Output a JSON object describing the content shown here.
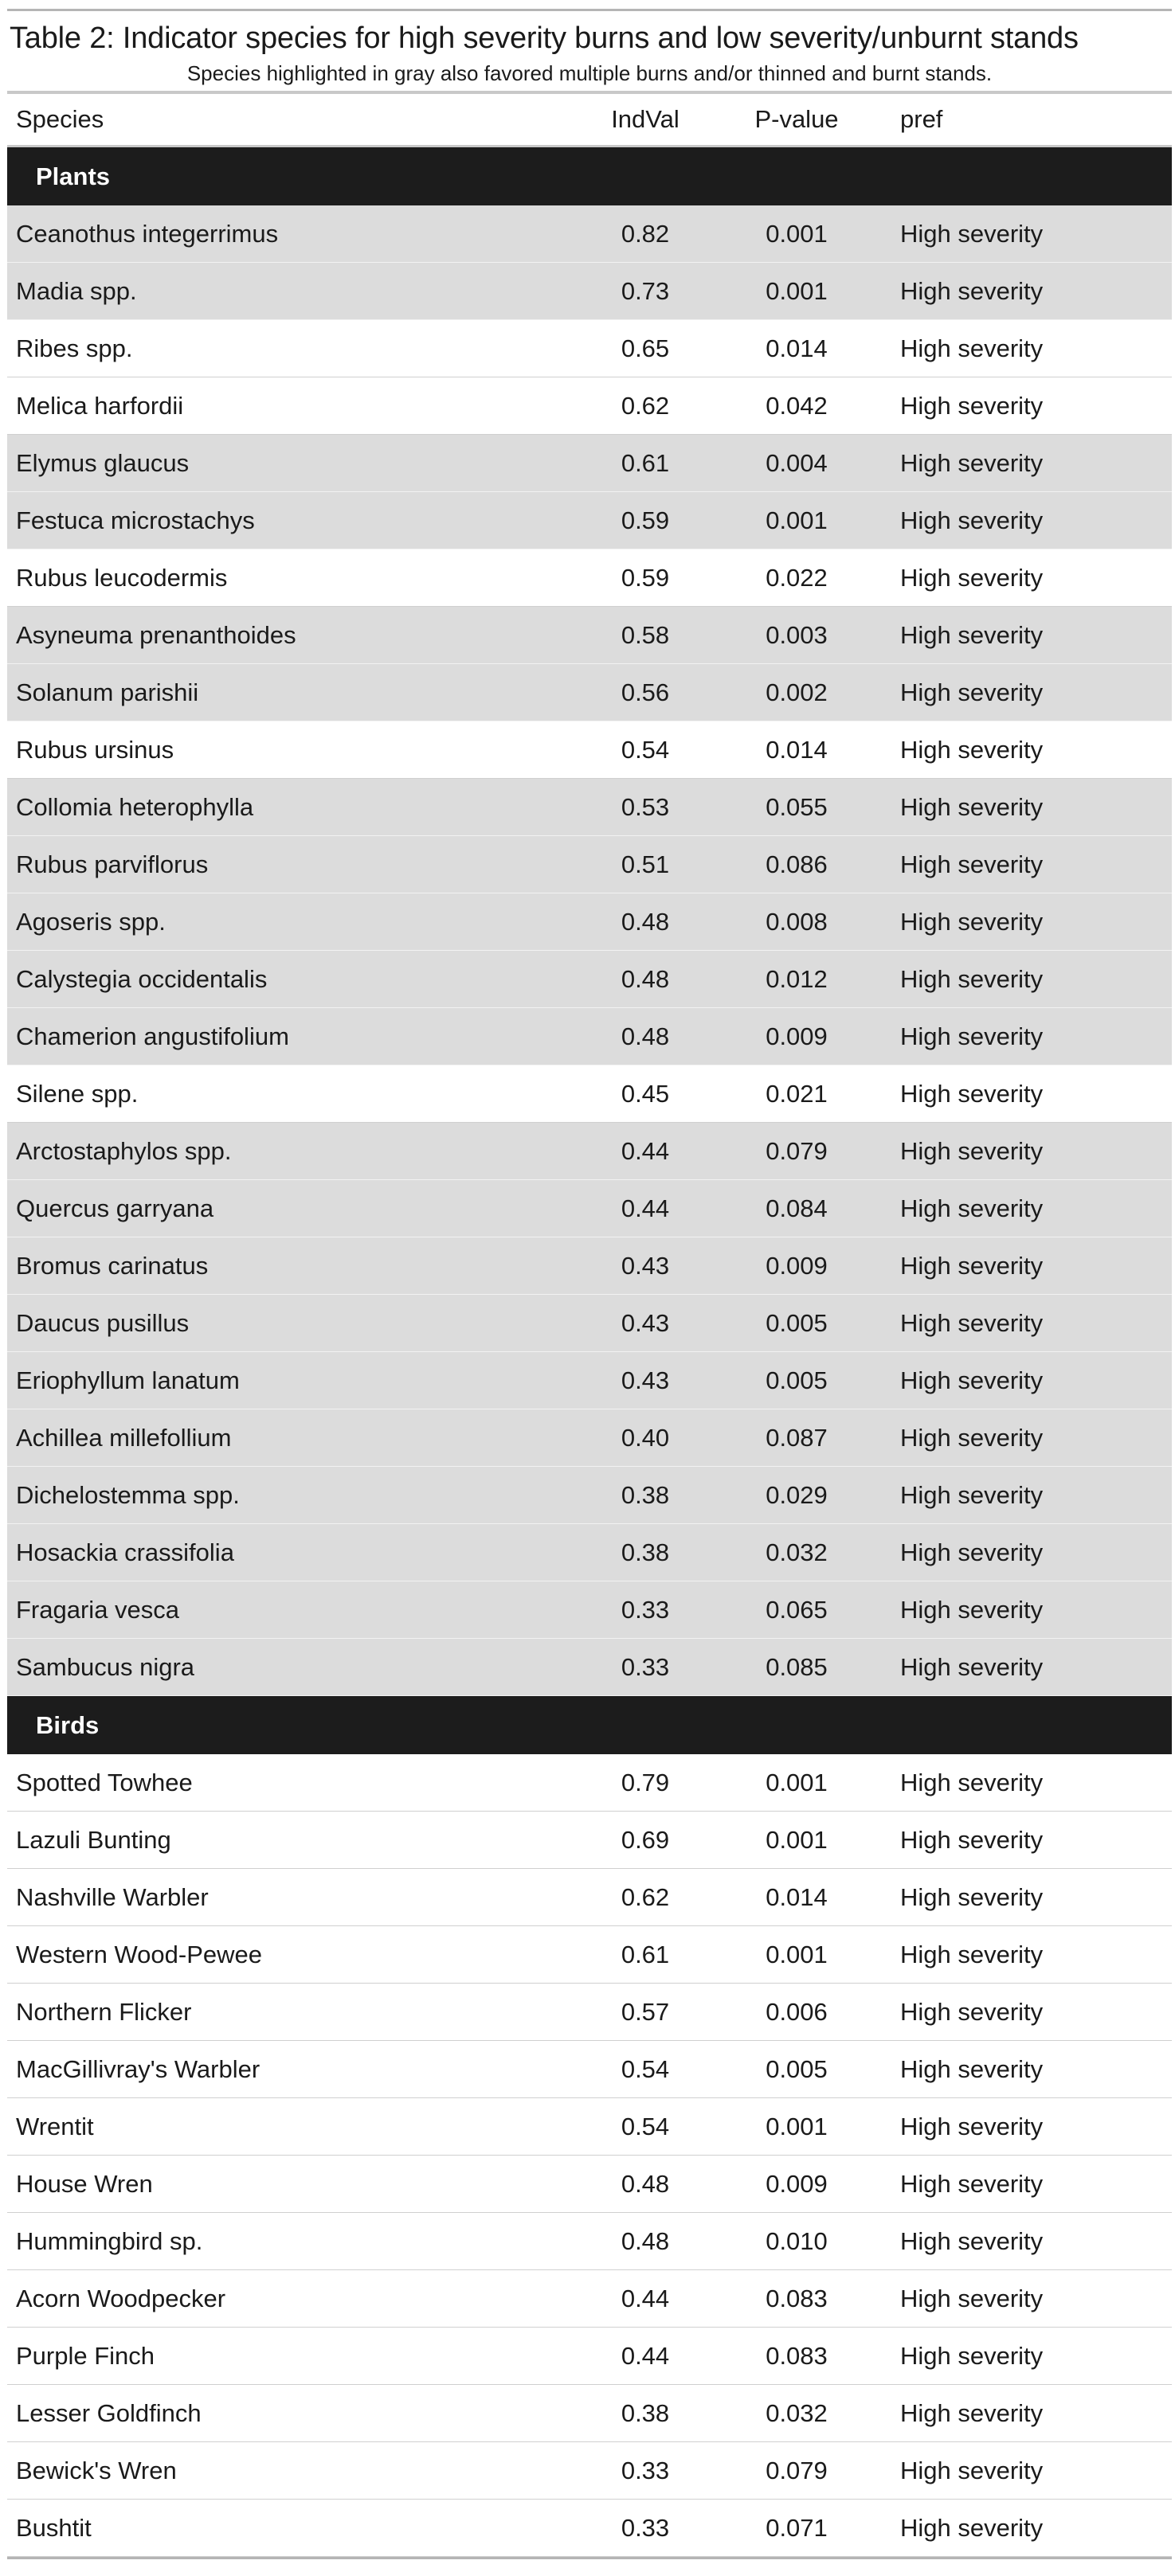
{
  "title": "Table 2: Indicator species for high severity burns and low severity/unburnt stands",
  "subtitle": "Species highlighted in gray also favored multiple burns and/or thinned and burnt stands.",
  "columns": {
    "species": "Species",
    "indval": "IndVal",
    "pvalue": "P-value",
    "pref": "pref"
  },
  "colors": {
    "highlight": "#dcdcdc",
    "group_header": "#1c1c1c"
  },
  "groups": [
    {
      "label": "Plants",
      "rows": [
        {
          "species": "Ceanothus integerrimus",
          "indval": "0.82",
          "pvalue": "0.001",
          "pref": "High severity",
          "highlighted": true
        },
        {
          "species": "Madia spp.",
          "indval": "0.73",
          "pvalue": "0.001",
          "pref": "High severity",
          "highlighted": true
        },
        {
          "species": "Ribes spp.",
          "indval": "0.65",
          "pvalue": "0.014",
          "pref": "High severity",
          "highlighted": false
        },
        {
          "species": "Melica harfordii",
          "indval": "0.62",
          "pvalue": "0.042",
          "pref": "High severity",
          "highlighted": false
        },
        {
          "species": "Elymus glaucus",
          "indval": "0.61",
          "pvalue": "0.004",
          "pref": "High severity",
          "highlighted": true
        },
        {
          "species": "Festuca microstachys",
          "indval": "0.59",
          "pvalue": "0.001",
          "pref": "High severity",
          "highlighted": true
        },
        {
          "species": "Rubus leucodermis",
          "indval": "0.59",
          "pvalue": "0.022",
          "pref": "High severity",
          "highlighted": false
        },
        {
          "species": "Asyneuma prenanthoides",
          "indval": "0.58",
          "pvalue": "0.003",
          "pref": "High severity",
          "highlighted": true
        },
        {
          "species": "Solanum parishii",
          "indval": "0.56",
          "pvalue": "0.002",
          "pref": "High severity",
          "highlighted": true
        },
        {
          "species": "Rubus ursinus",
          "indval": "0.54",
          "pvalue": "0.014",
          "pref": "High severity",
          "highlighted": false
        },
        {
          "species": "Collomia heterophylla",
          "indval": "0.53",
          "pvalue": "0.055",
          "pref": "High severity",
          "highlighted": true
        },
        {
          "species": "Rubus parviflorus",
          "indval": "0.51",
          "pvalue": "0.086",
          "pref": "High severity",
          "highlighted": true
        },
        {
          "species": "Agoseris spp.",
          "indval": "0.48",
          "pvalue": "0.008",
          "pref": "High severity",
          "highlighted": true
        },
        {
          "species": "Calystegia occidentalis",
          "indval": "0.48",
          "pvalue": "0.012",
          "pref": "High severity",
          "highlighted": true
        },
        {
          "species": "Chamerion angustifolium",
          "indval": "0.48",
          "pvalue": "0.009",
          "pref": "High severity",
          "highlighted": true
        },
        {
          "species": "Silene spp.",
          "indval": "0.45",
          "pvalue": "0.021",
          "pref": "High severity",
          "highlighted": false
        },
        {
          "species": "Arctostaphylos spp.",
          "indval": "0.44",
          "pvalue": "0.079",
          "pref": "High severity",
          "highlighted": true
        },
        {
          "species": "Quercus garryana",
          "indval": "0.44",
          "pvalue": "0.084",
          "pref": "High severity",
          "highlighted": true
        },
        {
          "species": "Bromus carinatus",
          "indval": "0.43",
          "pvalue": "0.009",
          "pref": "High severity",
          "highlighted": true
        },
        {
          "species": "Daucus pusillus",
          "indval": "0.43",
          "pvalue": "0.005",
          "pref": "High severity",
          "highlighted": true
        },
        {
          "species": "Eriophyllum lanatum",
          "indval": "0.43",
          "pvalue": "0.005",
          "pref": "High severity",
          "highlighted": true
        },
        {
          "species": "Achillea millefollium",
          "indval": "0.40",
          "pvalue": "0.087",
          "pref": "High severity",
          "highlighted": true
        },
        {
          "species": "Dichelostemma spp.",
          "indval": "0.38",
          "pvalue": "0.029",
          "pref": "High severity",
          "highlighted": true
        },
        {
          "species": "Hosackia crassifolia",
          "indval": "0.38",
          "pvalue": "0.032",
          "pref": "High severity",
          "highlighted": true
        },
        {
          "species": "Fragaria vesca",
          "indval": "0.33",
          "pvalue": "0.065",
          "pref": "High severity",
          "highlighted": true
        },
        {
          "species": "Sambucus nigra",
          "indval": "0.33",
          "pvalue": "0.085",
          "pref": "High severity",
          "highlighted": true
        }
      ]
    },
    {
      "label": "Birds",
      "rows": [
        {
          "species": "Spotted Towhee",
          "indval": "0.79",
          "pvalue": "0.001",
          "pref": "High severity",
          "highlighted": false
        },
        {
          "species": "Lazuli Bunting",
          "indval": "0.69",
          "pvalue": "0.001",
          "pref": "High severity",
          "highlighted": false
        },
        {
          "species": "Nashville Warbler",
          "indval": "0.62",
          "pvalue": "0.014",
          "pref": "High severity",
          "highlighted": false
        },
        {
          "species": "Western Wood-Pewee",
          "indval": "0.61",
          "pvalue": "0.001",
          "pref": "High severity",
          "highlighted": false
        },
        {
          "species": "Northern Flicker",
          "indval": "0.57",
          "pvalue": "0.006",
          "pref": "High severity",
          "highlighted": false
        },
        {
          "species": "MacGillivray's Warbler",
          "indval": "0.54",
          "pvalue": "0.005",
          "pref": "High severity",
          "highlighted": false
        },
        {
          "species": "Wrentit",
          "indval": "0.54",
          "pvalue": "0.001",
          "pref": "High severity",
          "highlighted": false
        },
        {
          "species": "House Wren",
          "indval": "0.48",
          "pvalue": "0.009",
          "pref": "High severity",
          "highlighted": false
        },
        {
          "species": "Hummingbird sp.",
          "indval": "0.48",
          "pvalue": "0.010",
          "pref": "High severity",
          "highlighted": false
        },
        {
          "species": "Acorn Woodpecker",
          "indval": "0.44",
          "pvalue": "0.083",
          "pref": "High severity",
          "highlighted": false
        },
        {
          "species": "Purple Finch",
          "indval": "0.44",
          "pvalue": "0.083",
          "pref": "High severity",
          "highlighted": false
        },
        {
          "species": "Lesser Goldfinch",
          "indval": "0.38",
          "pvalue": "0.032",
          "pref": "High severity",
          "highlighted": false
        },
        {
          "species": "Bewick's Wren",
          "indval": "0.33",
          "pvalue": "0.079",
          "pref": "High severity",
          "highlighted": false
        },
        {
          "species": "Bushtit",
          "indval": "0.33",
          "pvalue": "0.071",
          "pref": "High severity",
          "highlighted": false
        }
      ]
    }
  ]
}
